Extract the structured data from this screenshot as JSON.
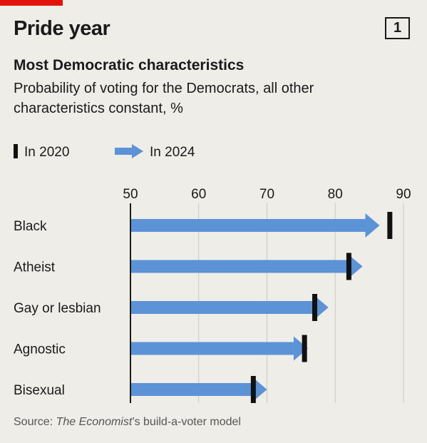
{
  "header": {
    "title": "Pride year",
    "chart_number": "1",
    "subtitle": "Most Democratic characteristics",
    "description": "Probability of voting for the Democrats, all other characteristics constant, %"
  },
  "legend": {
    "item_2020": "In 2020",
    "item_2024": "In 2024"
  },
  "source": {
    "prefix": "Source: ",
    "italic": "The Economist",
    "suffix": "’s build-a-voter model"
  },
  "colors": {
    "arrow_2024": "#5b93d6",
    "marker_2020": "#111111",
    "brand_red": "#e3120b"
  },
  "chart_data": {
    "type": "bar",
    "title": "Pride year",
    "subtitle": "Most Democratic characteristics",
    "xlim": [
      50,
      90
    ],
    "xticks": [
      50,
      60,
      70,
      80,
      90
    ],
    "grid": true,
    "legend_placement": "top-left",
    "categories": [
      "Black",
      "Atheist",
      "Gay or lesbian",
      "Agnostic",
      "Bisexual"
    ],
    "series": [
      {
        "name": "In 2020",
        "values": [
          88,
          82,
          77,
          75.5,
          68
        ],
        "style": "marker"
      },
      {
        "name": "In 2024",
        "values": [
          86.5,
          84,
          79,
          76,
          70
        ],
        "style": "arrow"
      }
    ]
  }
}
